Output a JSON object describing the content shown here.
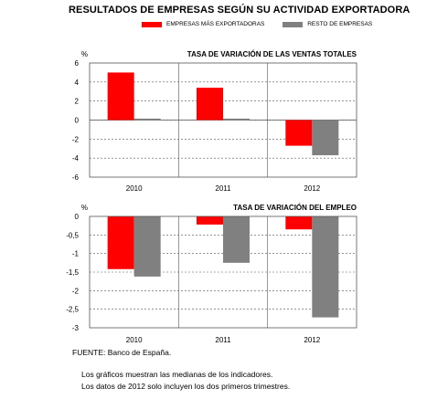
{
  "title": "RESULTADOS DE EMPRESAS SEGÚN SU ACTIVIDAD EXPORTADORA",
  "colors": {
    "exporters": "#ff0000",
    "rest": "#808080"
  },
  "legend": {
    "exporters": "EMPRESAS MÁS EXPORTADORAS",
    "rest": "RESTO DE EMPRESAS"
  },
  "notes": {
    "source": "FUENTE: Banco de España.",
    "line1": "Los gráficos muestran las medianas de los indicadores.",
    "line2": "Los datos de 2012 solo incluyen los dos primeros trimestres."
  },
  "chart_data": [
    {
      "type": "bar",
      "title": "TASA DE VARIACIÓN DE LAS VENTAS TOTALES",
      "ylabel": "%",
      "categories": [
        "2010",
        "2011",
        "2012"
      ],
      "ylim": [
        -6,
        6
      ],
      "yticks": [
        "6",
        "4",
        "2",
        "0",
        "-2",
        "-4",
        "-6"
      ],
      "grid": true,
      "series": [
        {
          "name": "EMPRESAS MÁS EXPORTADORAS",
          "values": [
            5.0,
            3.4,
            -2.7
          ]
        },
        {
          "name": "RESTO DE EMPRESAS",
          "values": [
            0.15,
            0.15,
            -3.7
          ]
        }
      ]
    },
    {
      "type": "bar",
      "title": "TASA DE VARIACIÓN DEL EMPLEO",
      "ylabel": "%",
      "categories": [
        "2010",
        "2011",
        "2012"
      ],
      "ylim": [
        -3,
        0
      ],
      "yticks": [
        "0",
        "-0,5",
        "-1",
        "-1,5",
        "-2",
        "-2,5",
        "-3"
      ],
      "grid": true,
      "series": [
        {
          "name": "EMPRESAS MÁS EXPORTADORAS",
          "values": [
            -1.42,
            -0.22,
            -0.35
          ]
        },
        {
          "name": "RESTO DE EMPRESAS",
          "values": [
            -1.62,
            -1.25,
            -2.72
          ]
        }
      ]
    }
  ]
}
